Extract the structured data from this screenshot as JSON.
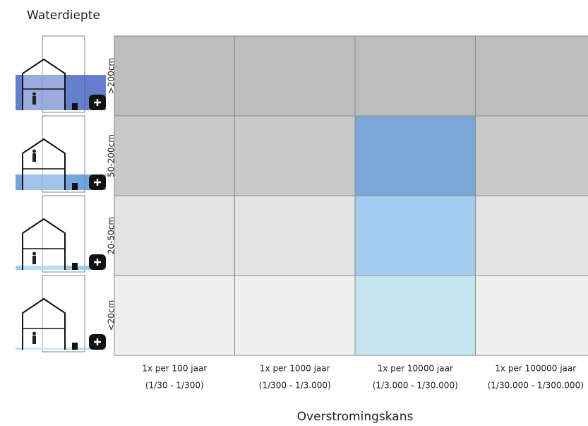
{
  "title": "Waterdiepte",
  "rows": [
    {
      "label": ">200cm",
      "cells": [
        "#bdbdbd",
        "#bdbdbd",
        "#bdbdbd",
        "#bdbdbd"
      ]
    },
    {
      "label": "50-200cm",
      "cells": [
        "#c9c9c9",
        "#c9c9c9",
        "#7ba7d9",
        "#c9c9c9"
      ]
    },
    {
      "label": "20-50cm",
      "cells": [
        "#e3e3e3",
        "#e3e3e3",
        "#a3cdef",
        "#e3e3e3"
      ]
    },
    {
      "label": "<20cm",
      "cells": [
        "#efefef",
        "#efefef",
        "#c3e6ee",
        "#efefef"
      ]
    }
  ],
  "columns": [
    {
      "label": "1x per 100 jaar",
      "range": "(1/30 - 1/300)"
    },
    {
      "label": "1x per 1000 jaar",
      "range": "(1/300 - 1/3.000)"
    },
    {
      "label": "1x per 10000 jaar",
      "range": "(1/3.000 - 1/30.000)"
    },
    {
      "label": "1x per 100000 jaar",
      "range": "(1/30.000 - 1/300.000)"
    }
  ],
  "x_axis_title": "Overstromingskans"
}
